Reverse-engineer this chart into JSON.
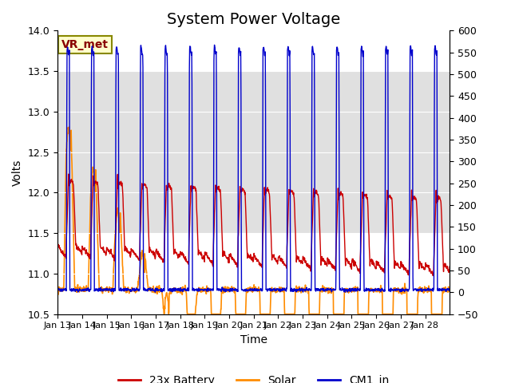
{
  "title": "System Power Voltage",
  "xlabel": "Time",
  "ylabel": "Volts",
  "ylim_left": [
    10.5,
    14.0
  ],
  "ylim_right": [
    -50,
    600
  ],
  "yticks_left": [
    10.5,
    11.0,
    11.5,
    12.0,
    12.5,
    13.0,
    13.5,
    14.0
  ],
  "yticks_right": [
    -50,
    0,
    50,
    100,
    150,
    200,
    250,
    300,
    350,
    400,
    450,
    500,
    550,
    600
  ],
  "xtick_labels": [
    "Jan 13",
    "Jan 14",
    "Jan 15",
    "Jan 16",
    "Jan 17",
    "Jan 18",
    "Jan 19",
    "Jan 20",
    "Jan 21",
    "Jan 22",
    "Jan 23",
    "Jan 24",
    "Jan 25",
    "Jan 26",
    "Jan 27",
    "Jan 28"
  ],
  "colors": {
    "battery": "#cc0000",
    "solar": "#ff8c00",
    "cm1": "#0000cc",
    "vr_box_face": "#ffffcc",
    "vr_box_edge": "#888800",
    "vr_text": "#880000",
    "bg_band": "#e0e0e0"
  },
  "legend_labels": [
    "23x Battery",
    "Solar",
    "CM1_in"
  ],
  "vr_label": "VR_met",
  "title_fontsize": 14,
  "label_fontsize": 10,
  "tick_fontsize": 9
}
